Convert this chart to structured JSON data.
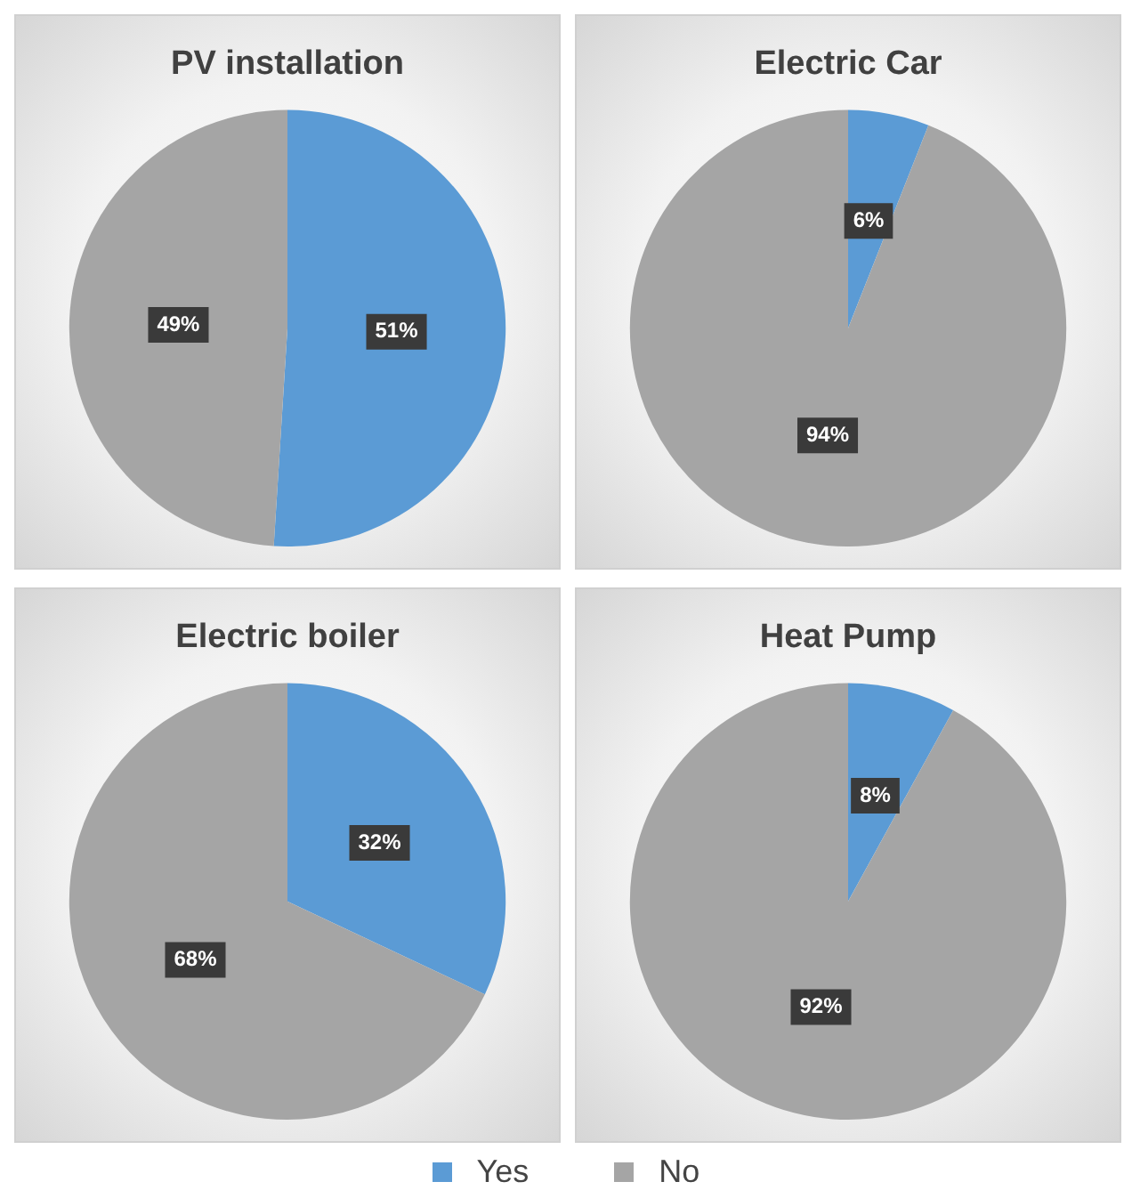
{
  "chart_data": [
    {
      "type": "pie",
      "title": "PV installation",
      "categories": [
        "Yes",
        "No"
      ],
      "values": [
        51,
        49
      ],
      "colors": [
        "#5b9bd5",
        "#a5a5a5"
      ],
      "value_labels": [
        "51%",
        "49%"
      ],
      "legend": "bottom"
    },
    {
      "type": "pie",
      "title": "Electric Car",
      "categories": [
        null,
        null
      ],
      "values": [
        6,
        94
      ],
      "colors": [
        "#5b9bd5",
        "#a5a5a5"
      ],
      "value_labels": [
        "6%",
        "94%"
      ],
      "legend": false
    },
    {
      "type": "pie",
      "title": "Electric boiler",
      "categories": [
        null,
        null
      ],
      "values": [
        32,
        68
      ],
      "colors": [
        "#5b9bd5",
        "#a5a5a5"
      ],
      "value_labels": [
        "32%",
        "68%"
      ],
      "legend": false
    },
    {
      "type": "pie",
      "title": "Heat Pump",
      "categories": [
        null,
        null
      ],
      "values": [
        8,
        92
      ],
      "colors": [
        "#5b9bd5",
        "#a5a5a5"
      ],
      "value_labels": [
        "8%",
        "92%"
      ],
      "legend": false
    }
  ]
}
